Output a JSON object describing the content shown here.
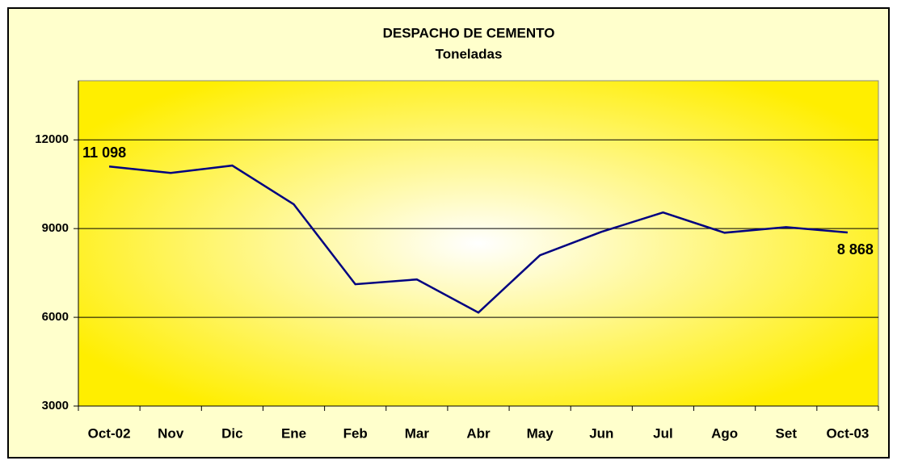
{
  "chart_data": {
    "type": "line",
    "title": "DESPACHO DE CEMENTO",
    "subtitle": "Toneladas",
    "categories": [
      "Oct-02",
      "Nov",
      "Dic",
      "Ene",
      "Feb",
      "Mar",
      "Abr",
      "May",
      "Jun",
      "Jul",
      "Ago",
      "Set",
      "Oct-03"
    ],
    "series": [
      {
        "name": "Despacho",
        "color": "#000080",
        "values": [
          11098,
          10880,
          11130,
          9820,
          7120,
          7280,
          6160,
          8100,
          8890,
          9545,
          8860,
          9050,
          8868
        ],
        "value_labels": [
          "11 098",
          null,
          null,
          null,
          null,
          null,
          null,
          null,
          null,
          null,
          null,
          null,
          "8 868"
        ]
      }
    ],
    "ylim": [
      3000,
      14000
    ],
    "yticks": [
      3000,
      6000,
      9000,
      12000
    ],
    "grid": true
  }
}
